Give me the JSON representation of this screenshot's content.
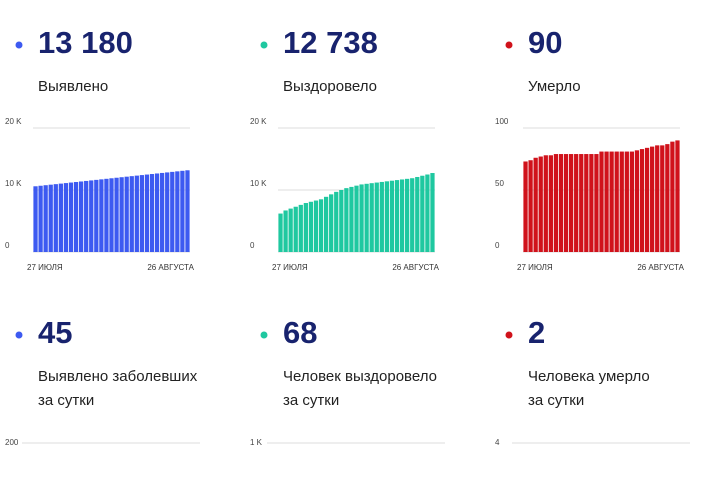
{
  "chart_data": [
    {
      "type": "bar",
      "title": "13 180",
      "subtitle": [
        "Выявлено"
      ],
      "color": "#3d5af1",
      "categories": [
        "27 ИЮЛЯ",
        null,
        null,
        null,
        null,
        null,
        null,
        null,
        null,
        null,
        null,
        null,
        null,
        null,
        null,
        null,
        null,
        null,
        null,
        null,
        null,
        null,
        null,
        null,
        null,
        null,
        null,
        null,
        null,
        null,
        "26 АВГУСТА"
      ],
      "values": [
        10600,
        10686,
        10772,
        10858,
        10944,
        11030,
        11116,
        11202,
        11288,
        11374,
        11460,
        11546,
        11632,
        11718,
        11804,
        11890,
        11976,
        12062,
        12148,
        12234,
        12320,
        12406,
        12492,
        12578,
        12664,
        12750,
        12836,
        12922,
        13008,
        13094,
        13180
      ],
      "ylim": [
        0,
        20000
      ],
      "yticks": [
        0,
        {
          "value": 10000,
          "label": "10 K"
        },
        {
          "value": 20000,
          "label": "20 K"
        }
      ]
    },
    {
      "type": "bar",
      "title": "12 738",
      "subtitle": [
        "Выздоровело"
      ],
      "color": "#1fc8a0",
      "categories": [
        "27 ИЮЛЯ",
        null,
        null,
        null,
        null,
        null,
        null,
        null,
        null,
        null,
        null,
        null,
        null,
        null,
        null,
        null,
        null,
        null,
        null,
        null,
        null,
        null,
        null,
        null,
        null,
        null,
        null,
        null,
        null,
        null,
        "26 АВГУСТА"
      ],
      "values": [
        6200,
        6700,
        7000,
        7300,
        7600,
        7900,
        8100,
        8300,
        8500,
        8900,
        9300,
        9700,
        10000,
        10300,
        10500,
        10700,
        10900,
        11000,
        11100,
        11200,
        11300,
        11400,
        11500,
        11600,
        11700,
        11800,
        11900,
        12100,
        12300,
        12500,
        12738
      ],
      "ylim": [
        0,
        20000
      ],
      "yticks": [
        0,
        {
          "value": 10000,
          "label": "10 K"
        },
        {
          "value": 20000,
          "label": "20 K"
        }
      ]
    },
    {
      "type": "bar",
      "title": "90",
      "subtitle": [
        "Умерло"
      ],
      "color": "#d0121b",
      "categories": [
        "27 ИЮЛЯ",
        null,
        null,
        null,
        null,
        null,
        null,
        null,
        null,
        null,
        null,
        null,
        null,
        null,
        null,
        null,
        null,
        null,
        null,
        null,
        null,
        null,
        null,
        null,
        null,
        null,
        null,
        null,
        null,
        null,
        "26 АВГУСТА"
      ],
      "values": [
        73,
        74,
        76,
        77,
        78,
        78,
        79,
        79,
        79,
        79,
        79,
        79,
        79,
        79,
        79,
        81,
        81,
        81,
        81,
        81,
        81,
        81,
        82,
        83,
        84,
        85,
        86,
        86,
        87,
        89,
        90
      ],
      "ylim": [
        0,
        100
      ],
      "yticks": [
        0,
        50,
        100
      ]
    },
    {
      "type": "bar",
      "title": "45",
      "subtitle": [
        "Выявлено заболевших",
        "за сутки"
      ],
      "color": "#3d5af1",
      "yticks": [
        200
      ]
    },
    {
      "type": "bar",
      "title": "68",
      "subtitle": [
        "Человек выздоровело",
        "за сутки"
      ],
      "color": "#1fc8a0",
      "yticks": [
        {
          "value": 1000,
          "label": "1 K"
        }
      ]
    },
    {
      "type": "bar",
      "title": "2",
      "subtitle": [
        "Человека умерло",
        "за сутки"
      ],
      "color": "#d0121b",
      "yticks": [
        4
      ]
    }
  ]
}
